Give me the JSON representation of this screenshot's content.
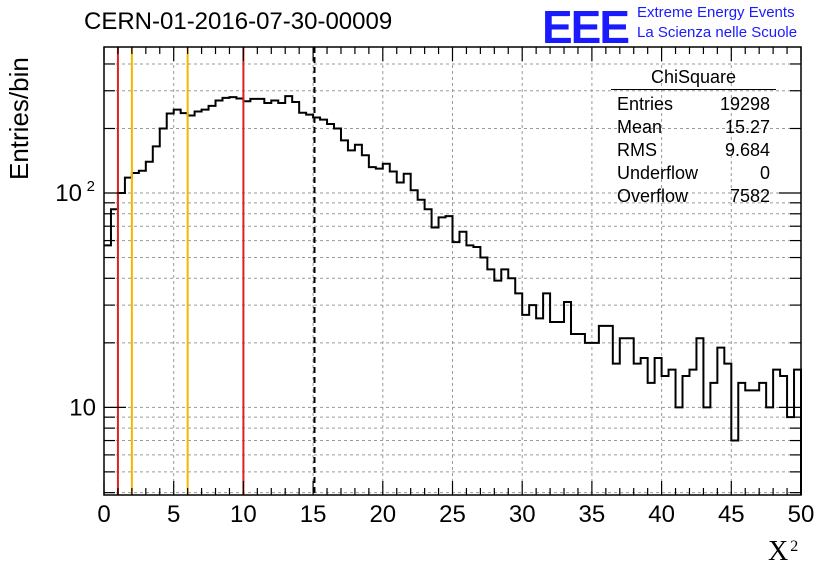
{
  "header": {
    "run_id": "CERN-01-2016-07-30-00009",
    "logo_text": "EEE",
    "logo_line1": "Extreme Energy Events",
    "logo_line2": "La Scienza nelle Scuole",
    "logo_color": "#1a1aff"
  },
  "stats": {
    "title": "ChiSquare",
    "rows": [
      {
        "label": "Entries",
        "value": "19298"
      },
      {
        "label": "Mean",
        "value": "15.27"
      },
      {
        "label": "RMS",
        "value": "9.684"
      },
      {
        "label": "Underflow",
        "value": "0"
      },
      {
        "label": "Overflow",
        "value": "7582"
      }
    ]
  },
  "chart_data": {
    "type": "histogram",
    "xlabel": "X",
    "xlabel_superscript": "2",
    "ylabel": "Entries/bin",
    "xlim": [
      0,
      50
    ],
    "ylim": [
      3.9,
      480
    ],
    "yscale": "log",
    "grid": true,
    "bin_width": 0.5,
    "x_ticks": [
      0,
      5,
      10,
      15,
      20,
      25,
      30,
      35,
      40,
      45,
      50
    ],
    "y_ticks": [
      {
        "value": 10,
        "label": "10"
      },
      {
        "value": 100,
        "label": "10",
        "exponent": "2"
      }
    ],
    "counts": [
      57,
      84,
      100,
      118,
      124,
      127,
      140,
      165,
      200,
      235,
      245,
      236,
      230,
      240,
      245,
      255,
      270,
      278,
      280,
      276,
      268,
      275,
      275,
      263,
      270,
      263,
      283,
      266,
      237,
      232,
      225,
      220,
      210,
      200,
      176,
      158,
      168,
      150,
      132,
      130,
      137,
      126,
      112,
      123,
      103,
      93,
      84,
      69,
      77,
      78,
      59,
      66,
      57,
      56,
      50,
      44,
      39,
      44,
      40,
      34,
      27,
      30,
      26,
      34,
      25,
      25,
      31,
      22,
      22,
      20,
      20,
      24,
      24,
      16,
      21,
      21,
      16,
      17,
      13,
      17,
      14,
      15,
      10,
      14,
      15,
      21,
      10,
      13,
      19,
      16,
      7,
      13,
      12,
      12,
      13,
      10,
      15,
      14,
      9,
      15
    ],
    "vlines": [
      {
        "x": 1,
        "color": "#dd2222",
        "style": "solid"
      },
      {
        "x": 2,
        "color": "#f0b800",
        "style": "solid"
      },
      {
        "x": 6,
        "color": "#f0b800",
        "style": "solid"
      },
      {
        "x": 10,
        "color": "#dd2222",
        "style": "solid"
      },
      {
        "x": 15.1,
        "color": "#000000",
        "style": "dashed"
      }
    ]
  }
}
